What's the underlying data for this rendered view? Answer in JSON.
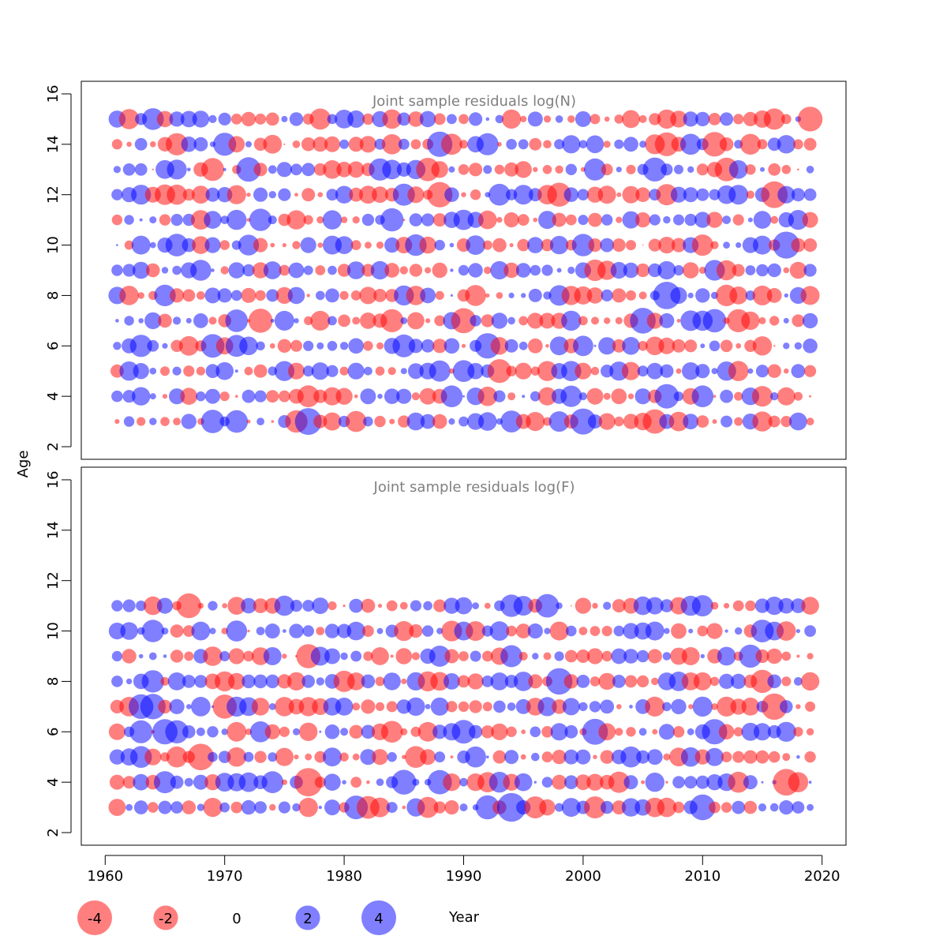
{
  "chart_data": {
    "type": "scatter",
    "subtype": "bubble",
    "shared_x_axis": true,
    "xlabel": "Year",
    "ylabel": "Age",
    "xlim": [
      1958,
      2022
    ],
    "ylim": [
      1.5,
      16.5
    ],
    "x_ticks": [
      1960,
      1970,
      1980,
      1990,
      2000,
      2010,
      2020
    ],
    "y_ticks": [
      2,
      4,
      6,
      8,
      10,
      12,
      14,
      16
    ],
    "colors": {
      "negative": "#ff0000",
      "positive": "#0000ff",
      "alpha": 0.5
    },
    "legend": {
      "placement": "bottom",
      "entries": [
        {
          "label": "-4",
          "value": -4
        },
        {
          "label": "-2",
          "value": -2
        },
        {
          "label": "0",
          "value": 0
        },
        {
          "label": "2",
          "value": 2
        },
        {
          "label": "4",
          "value": 4
        }
      ]
    },
    "panels": [
      {
        "title": "Joint sample residuals log(N)",
        "years": [
          1961,
          2019
        ],
        "ages": [
          3,
          15
        ],
        "seed": 12345,
        "residual_sd": 1.3,
        "residual_max": 4.5
      },
      {
        "title": "Joint sample residuals log(F)",
        "years": [
          1961,
          2019
        ],
        "ages": [
          3,
          11
        ],
        "seed": 67890,
        "residual_sd": 1.3,
        "residual_max": 4.5
      }
    ]
  }
}
